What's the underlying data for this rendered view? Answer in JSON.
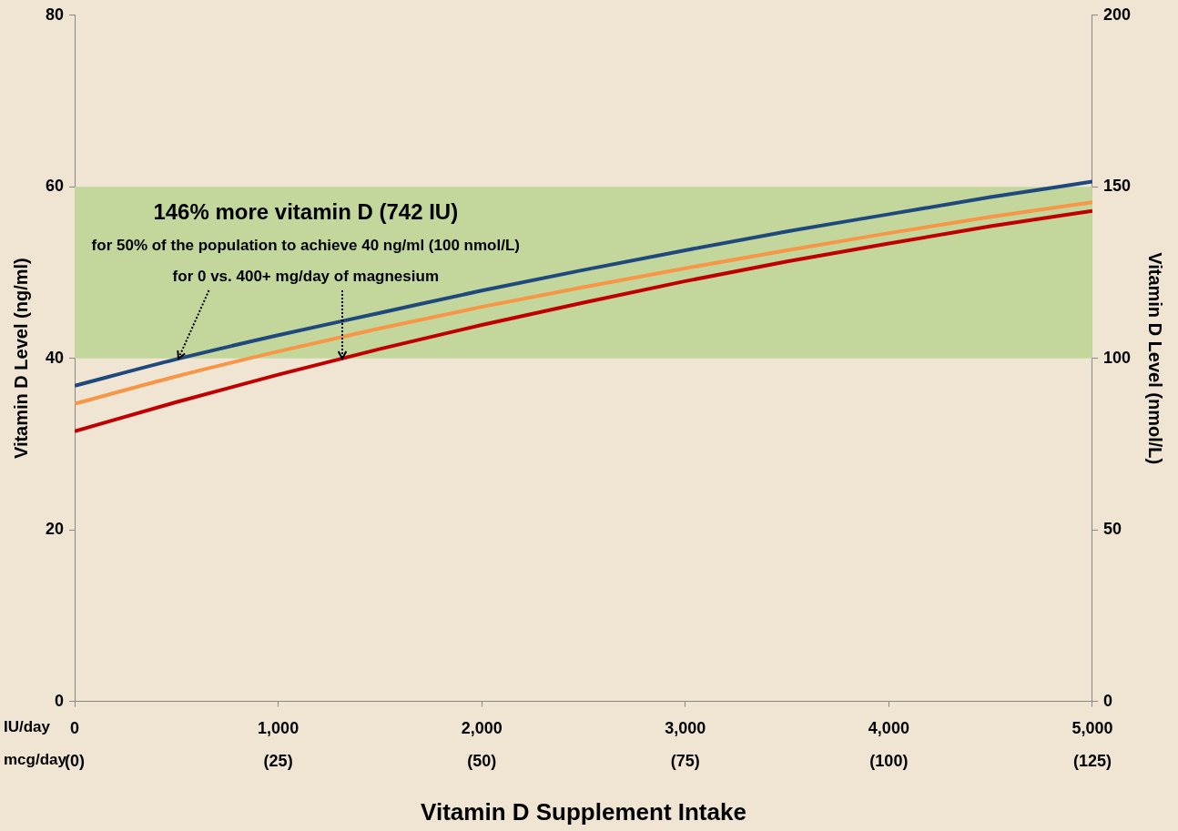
{
  "chart_data": {
    "type": "line",
    "xlabel": "Vitamin D Supplement Intake",
    "ylabel": "Vitamin D Level (ng/ml)",
    "y2label": "Vitamin D Level (nmol/L)",
    "x": [
      0,
      500,
      1000,
      1500,
      2000,
      2500,
      3000,
      3500,
      4000,
      4500,
      5000
    ],
    "series": [
      {
        "color": "#1f497d",
        "values": [
          36.8,
          39.9,
          42.7,
          45.3,
          47.9,
          50.3,
          52.6,
          54.8,
          56.8,
          58.8,
          60.6
        ]
      },
      {
        "color": "#f79646",
        "values": [
          34.7,
          37.9,
          40.8,
          43.5,
          46.0,
          48.3,
          50.5,
          52.6,
          54.6,
          56.5,
          58.2
        ]
      },
      {
        "color": "#c00000",
        "values": [
          31.5,
          34.9,
          38.1,
          41.1,
          43.9,
          46.5,
          49.0,
          51.3,
          53.4,
          55.4,
          57.2
        ]
      }
    ],
    "xlim": [
      0,
      5000
    ],
    "xticks": [
      0,
      {
        "value": 1000,
        "label": "1,000"
      },
      {
        "value": 2000,
        "label": "2,000"
      },
      {
        "value": 3000,
        "label": "3,000"
      },
      {
        "value": 4000,
        "label": "4,000"
      },
      {
        "value": 5000,
        "label": "5,000"
      }
    ],
    "x2lim": [
      0,
      125
    ],
    "x2ticks": [
      {
        "value": 0,
        "label": "(0)"
      },
      {
        "value": 25,
        "label": "(25)"
      },
      {
        "value": 50,
        "label": "(50)"
      },
      {
        "value": 75,
        "label": "(75)"
      },
      {
        "value": 100,
        "label": "(100)"
      },
      {
        "value": 125,
        "label": "(125)"
      }
    ],
    "ylim": [
      0,
      80
    ],
    "yticks": [
      0,
      20,
      40,
      60,
      80
    ],
    "y2lim": [
      0,
      200
    ],
    "y2ticks": [
      0,
      50,
      100,
      150,
      200
    ],
    "bands": [
      {
        "axis": "y",
        "from": 40,
        "to": 60,
        "color": "#c3d69b"
      }
    ],
    "annotations": [
      "146% more vitamin D (742 IU)",
      "for 50% of the population to achieve 40 ng/ml (100 nmol/L)",
      {
        "text": "for 0 vs. 400+ mg/day of magnesium",
        "x": 510,
        "y": 40
      },
      "IU/day",
      "mcg/day"
    ],
    "grid": false,
    "legend": false,
    "marker": "none",
    "line_style": "solid"
  }
}
